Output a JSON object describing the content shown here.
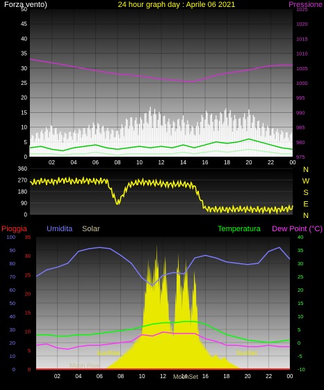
{
  "colors": {
    "wind_label": "#ffffff",
    "title": "#ffff00",
    "pressure": "#cc33cc",
    "wind_gust": "#ffffff",
    "wind_avg": "#00cc00",
    "wind_low": "#b8f5b8",
    "direction": "#ffff00",
    "rain": "#ff2020",
    "humidity": "#7a7aff",
    "solar": "#c8c096",
    "temperature": "#00ff00",
    "dewpoint": "#ff33ff",
    "temp_axis": "#33ff33",
    "sun": "#e8e800",
    "moon": "#c8c096"
  },
  "chart_data": [
    {
      "type": "line",
      "title": "24 hour graph day : Aprile 06 2021",
      "left_label": "Forza vento)",
      "right_label": "Pressione",
      "x_ticks": [
        "02",
        "04",
        "06",
        "08",
        "10",
        "12",
        "14",
        "16",
        "18",
        "20",
        "22",
        "00"
      ],
      "y_left_ticks": [
        "0",
        "5",
        "10",
        "15",
        "20",
        "25",
        "30",
        "35",
        "40",
        "45",
        "50"
      ],
      "y_left_range": [
        0,
        50
      ],
      "y_right_ticks": [
        "975",
        "980",
        "985",
        "990",
        "995",
        "1000",
        "1005",
        "1010",
        "1015",
        "1020",
        "1025"
      ],
      "y_right_range": [
        975,
        1025
      ],
      "series": [
        {
          "key": "pressure",
          "x": [
            0,
            1,
            2,
            3,
            4,
            5,
            6,
            7,
            8,
            9,
            10,
            11,
            12,
            13,
            14,
            15,
            16,
            17,
            18,
            19,
            20,
            21,
            22,
            23,
            24
          ],
          "values": [
            1008,
            1007.4,
            1006.8,
            1006.2,
            1005.5,
            1004.8,
            1004.2,
            1003.5,
            1003,
            1002.7,
            1002.3,
            1001.8,
            1001.3,
            1001,
            1000.6,
            1000.5,
            1001.5,
            1002.6,
            1003.3,
            1003.8,
            1004.4,
            1005.2,
            1005.8,
            1006,
            1006
          ]
        },
        {
          "key": "gust",
          "x": [
            0,
            1,
            2,
            3,
            4,
            5,
            6,
            7,
            8,
            9,
            10,
            11,
            12,
            13,
            14,
            15,
            16,
            17,
            18,
            19,
            20,
            21,
            22,
            23,
            24
          ],
          "values": [
            7,
            9,
            11,
            8,
            9,
            10,
            12,
            10,
            9,
            14,
            13,
            17,
            15,
            12,
            14,
            10,
            16,
            14,
            17,
            13,
            16,
            12,
            10,
            9,
            8
          ]
        },
        {
          "key": "average",
          "x": [
            0,
            1,
            2,
            3,
            4,
            5,
            6,
            7,
            8,
            9,
            10,
            11,
            12,
            13,
            14,
            15,
            16,
            17,
            18,
            19,
            20,
            21,
            22,
            23,
            24
          ],
          "values": [
            3,
            3.5,
            2.5,
            2,
            3,
            3.5,
            4,
            3,
            2.5,
            3,
            3.5,
            3,
            3.5,
            3,
            4,
            3,
            4,
            5,
            4.5,
            5,
            6,
            5,
            4,
            3,
            2.5
          ]
        },
        {
          "key": "low",
          "x": [
            0,
            1,
            2,
            3,
            4,
            5,
            6,
            7,
            8,
            9,
            10,
            11,
            12,
            13,
            14,
            15,
            16,
            17,
            18,
            19,
            20,
            21,
            22,
            23,
            24
          ],
          "values": [
            1,
            1,
            1,
            0.5,
            1,
            1,
            1.5,
            1,
            0.5,
            1,
            1,
            1,
            1,
            1,
            1.5,
            1,
            1.5,
            2,
            1.5,
            2,
            2.5,
            2,
            1.5,
            1,
            1
          ]
        }
      ]
    },
    {
      "type": "line",
      "y_left_ticks": [
        "0",
        "90",
        "180",
        "270",
        "360"
      ],
      "y_range": [
        0,
        360
      ],
      "right_labels": [
        "N",
        "W",
        "S",
        "E",
        "N"
      ],
      "series": [
        {
          "key": "direction",
          "x": [
            0,
            1,
            2,
            3,
            4,
            5,
            6,
            7,
            8,
            9,
            10,
            11,
            12,
            13,
            14,
            15,
            16,
            17,
            18,
            19,
            20,
            21,
            22,
            23,
            24
          ],
          "values": [
            245,
            262,
            255,
            270,
            258,
            265,
            260,
            266,
            80,
            230,
            255,
            250,
            240,
            235,
            238,
            225,
            45,
            40,
            38,
            42,
            40,
            38,
            36,
            40,
            50
          ]
        }
      ]
    },
    {
      "type": "line",
      "labels": {
        "rain": "Pioggia",
        "humidity": "Umidita",
        "solar": "Solar",
        "temperature": "Temperatura",
        "dewpoint": "Dew Point (°C)"
      },
      "x_ticks": [
        "02",
        "04",
        "06",
        "08",
        "10",
        "12",
        "14",
        "16",
        "18",
        "20",
        "22",
        "00"
      ],
      "y_left_ticks": [
        "0",
        "10",
        "20",
        "30",
        "40",
        "50",
        "60",
        "70",
        "80",
        "90",
        "100"
      ],
      "y_left_range": [
        0,
        100
      ],
      "y_rain_ticks": [
        "0",
        "5",
        "10",
        "15",
        "20",
        "25",
        "30",
        "35"
      ],
      "y_rain_range": [
        0,
        35
      ],
      "y_right_ticks": [
        "-10",
        "-5",
        "0",
        "5",
        "10",
        "15",
        "20",
        "25",
        "30",
        "35",
        "40"
      ],
      "y_right_range": [
        -10,
        40
      ],
      "annotations": [
        "SunRise",
        "SunSet",
        "Moon Rise",
        "MoonSet"
      ],
      "series": [
        {
          "key": "humidity",
          "x": [
            0,
            1,
            2,
            3,
            4,
            5,
            6,
            7,
            8,
            9,
            10,
            11,
            12,
            13,
            14,
            15,
            16,
            17,
            18,
            19,
            20,
            21,
            22,
            23,
            24
          ],
          "values": [
            70,
            75,
            77,
            80,
            89,
            91,
            92,
            91,
            86,
            80,
            69,
            63,
            71,
            73,
            72,
            84,
            86,
            84,
            81,
            80,
            79,
            80,
            89,
            92,
            83
          ]
        },
        {
          "key": "temperature",
          "x": [
            0,
            1,
            2,
            3,
            4,
            5,
            6,
            7,
            8,
            9,
            10,
            11,
            12,
            13,
            14,
            15,
            16,
            17,
            18,
            19,
            20,
            21,
            22,
            23,
            24
          ],
          "values": [
            3,
            3,
            2.5,
            2.5,
            3,
            3,
            3.5,
            4,
            4.5,
            5,
            6,
            7,
            7.5,
            7.5,
            8,
            8,
            7,
            5,
            3,
            2,
            1,
            0.5,
            0,
            0.5,
            1
          ]
        },
        {
          "key": "dewpoint",
          "x": [
            0,
            1,
            2,
            3,
            4,
            5,
            6,
            7,
            8,
            9,
            10,
            11,
            12,
            13,
            14,
            15,
            16,
            17,
            18,
            19,
            20,
            21,
            22,
            23,
            24
          ],
          "values": [
            -1,
            -0.5,
            -2,
            -2.5,
            -1.5,
            -1,
            -1,
            -0.5,
            0,
            0.5,
            3,
            2.5,
            4,
            3.5,
            3.5,
            3.5,
            1.5,
            0.5,
            -1,
            -1,
            -1.5,
            -1.5,
            -1,
            -1.5,
            -1.5
          ]
        },
        {
          "key": "solar",
          "x": [
            0,
            6.5,
            7,
            7.5,
            8,
            8.5,
            9,
            9.5,
            10,
            10.3,
            10.6,
            11,
            11.4,
            11.8,
            12.2,
            12.6,
            13,
            13.4,
            13.8,
            14.2,
            14.6,
            15,
            15.4,
            15.8,
            16.2,
            16.6,
            17,
            17.4,
            17.8,
            18.2,
            18.6,
            19,
            19.5,
            24
          ],
          "values": [
            0,
            0,
            3,
            6,
            10,
            14,
            18,
            24,
            30,
            60,
            85,
            70,
            95,
            62,
            90,
            40,
            28,
            92,
            60,
            88,
            40,
            80,
            25,
            20,
            15,
            10,
            12,
            8,
            10,
            6,
            4,
            2,
            0,
            0
          ]
        },
        {
          "key": "rain",
          "x": [
            0,
            24
          ],
          "values": [
            0,
            0
          ]
        }
      ]
    }
  ]
}
